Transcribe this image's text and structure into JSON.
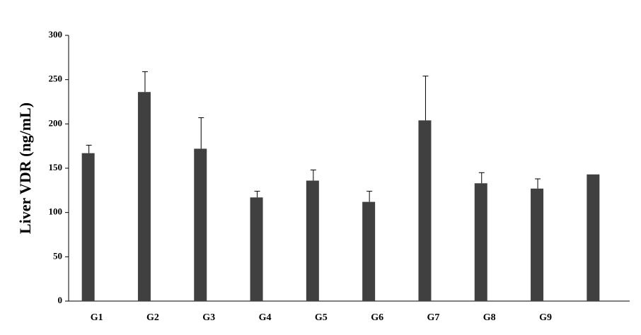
{
  "chart_data": {
    "type": "bar",
    "ylabel": "Liver VDR (ng/mL)",
    "categories": [
      "G1",
      "G2",
      "G3",
      "G4",
      "G5",
      "G6",
      "G7",
      "G8",
      "G9",
      null
    ],
    "values": [
      167,
      236,
      172,
      117,
      136,
      112,
      204,
      133,
      127,
      143
    ],
    "errors": [
      9,
      23,
      35,
      7,
      12,
      12,
      50,
      12,
      11,
      null
    ],
    "color": "#404040",
    "ylim": [
      0,
      300
    ],
    "yticks": [
      0,
      50,
      100,
      150,
      200,
      250,
      300
    ]
  }
}
